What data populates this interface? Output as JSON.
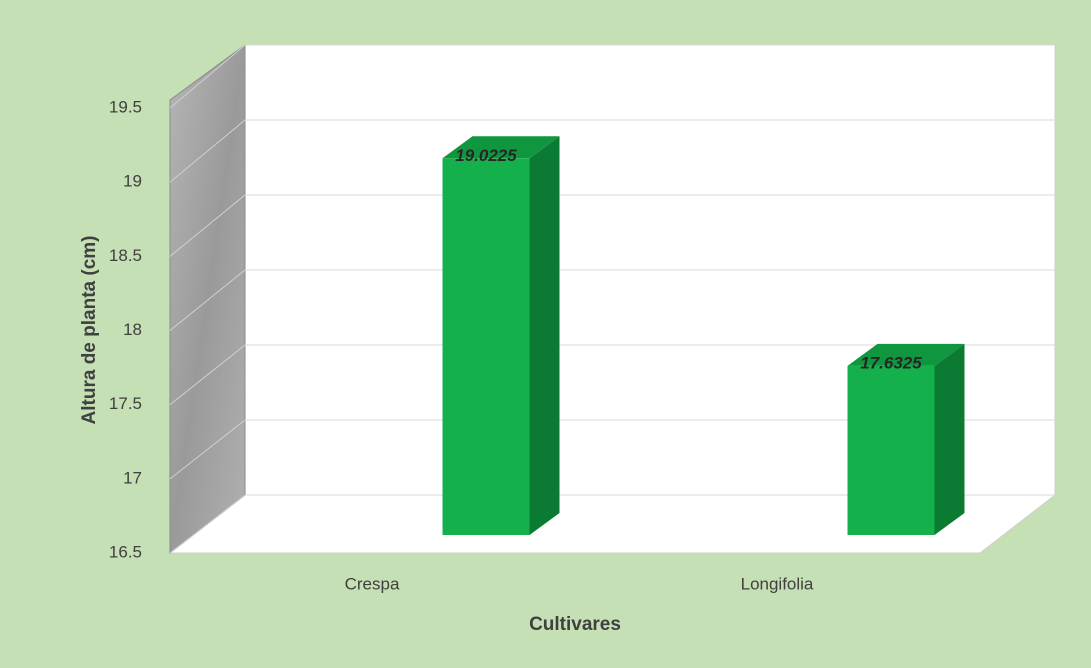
{
  "chart_data": {
    "type": "bar3d",
    "categories": [
      "Crespa",
      "Longifolia"
    ],
    "values": [
      19.0225,
      17.6325
    ],
    "color": "#14b04c",
    "ylim": [
      16.5,
      19.5
    ],
    "yticks": [
      16.5,
      17,
      17.5,
      18,
      18.5,
      19,
      19.5
    ],
    "ylabel": "Altura de planta (cm)",
    "xlabel": "Cultivares",
    "grid": true
  }
}
